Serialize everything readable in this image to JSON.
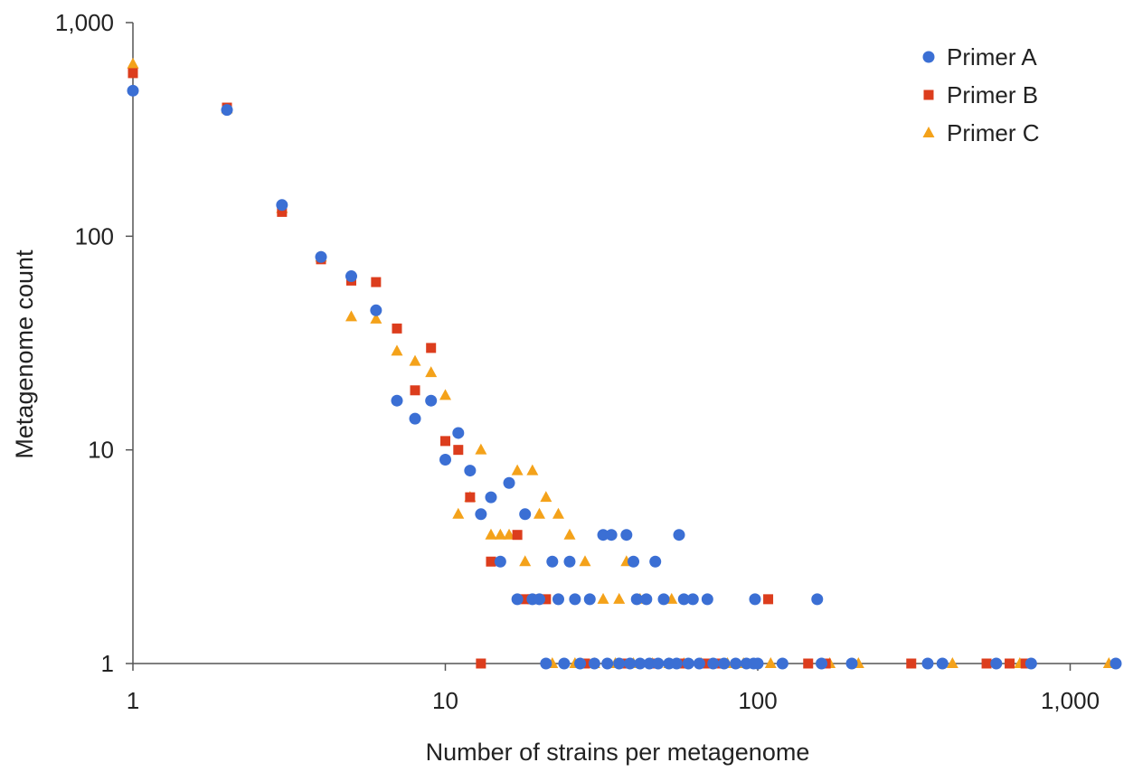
{
  "chart_data": {
    "type": "scatter",
    "title": "",
    "xlabel": "Number of strains per metagenome",
    "ylabel": "Metagenome count",
    "xscale": "log",
    "yscale": "log",
    "xlim": [
      1,
      1400
    ],
    "ylim": [
      1,
      1000
    ],
    "x_ticks": [
      1,
      10,
      100,
      1000
    ],
    "x_tick_labels": [
      "1",
      "10",
      "100",
      "1,000"
    ],
    "y_ticks": [
      1,
      10,
      100,
      1000
    ],
    "y_tick_labels": [
      "1",
      "10",
      "100",
      "1,000"
    ],
    "grid": false,
    "legend_position": "top-right",
    "series": [
      {
        "name": "Primer A",
        "marker": "circle",
        "color": "#3b6fd4",
        "points": [
          [
            1,
            480
          ],
          [
            2,
            390
          ],
          [
            3,
            140
          ],
          [
            4,
            80
          ],
          [
            5,
            65
          ],
          [
            6,
            45
          ],
          [
            7,
            17
          ],
          [
            8,
            14
          ],
          [
            9,
            17
          ],
          [
            10,
            9
          ],
          [
            11,
            12
          ],
          [
            12,
            8
          ],
          [
            13,
            5
          ],
          [
            14,
            6
          ],
          [
            15,
            3
          ],
          [
            16,
            7
          ],
          [
            17,
            2
          ],
          [
            18,
            5
          ],
          [
            19,
            2
          ],
          [
            20,
            2
          ],
          [
            22,
            3
          ],
          [
            23,
            2
          ],
          [
            25,
            3
          ],
          [
            26,
            2
          ],
          [
            29,
            2
          ],
          [
            32,
            4
          ],
          [
            34,
            4
          ],
          [
            38,
            4
          ],
          [
            40,
            3
          ],
          [
            41,
            2
          ],
          [
            44,
            2
          ],
          [
            47,
            3
          ],
          [
            50,
            2
          ],
          [
            56,
            4
          ],
          [
            58,
            2
          ],
          [
            62,
            2
          ],
          [
            69,
            2
          ],
          [
            98,
            2
          ],
          [
            155,
            2
          ],
          [
            21,
            1
          ],
          [
            24,
            1
          ],
          [
            27,
            1
          ],
          [
            30,
            1
          ],
          [
            33,
            1
          ],
          [
            36,
            1
          ],
          [
            39,
            1
          ],
          [
            42,
            1
          ],
          [
            45,
            1
          ],
          [
            48,
            1
          ],
          [
            52,
            1
          ],
          [
            55,
            1
          ],
          [
            60,
            1
          ],
          [
            65,
            1
          ],
          [
            72,
            1
          ],
          [
            78,
            1
          ],
          [
            85,
            1
          ],
          [
            92,
            1
          ],
          [
            97,
            1
          ],
          [
            100,
            1
          ],
          [
            120,
            1
          ],
          [
            160,
            1
          ],
          [
            200,
            1
          ],
          [
            350,
            1
          ],
          [
            390,
            1
          ],
          [
            580,
            1
          ],
          [
            750,
            1
          ],
          [
            1400,
            1
          ]
        ]
      },
      {
        "name": "Primer B",
        "marker": "square",
        "color": "#dc3d1d",
        "points": [
          [
            1,
            580
          ],
          [
            2,
            400
          ],
          [
            3,
            130
          ],
          [
            4,
            78
          ],
          [
            5,
            62
          ],
          [
            6,
            61
          ],
          [
            7,
            37
          ],
          [
            8,
            19
          ],
          [
            9,
            30
          ],
          [
            10,
            11
          ],
          [
            11,
            10
          ],
          [
            12,
            6
          ],
          [
            14,
            3
          ],
          [
            17,
            4
          ],
          [
            18,
            2
          ],
          [
            19,
            2
          ],
          [
            21,
            2
          ],
          [
            13,
            1
          ],
          [
            28,
            1
          ],
          [
            37,
            1
          ],
          [
            46,
            1
          ],
          [
            57,
            1
          ],
          [
            68,
            1
          ],
          [
            75,
            1
          ],
          [
            108,
            2
          ],
          [
            145,
            1
          ],
          [
            165,
            1
          ],
          [
            310,
            1
          ],
          [
            540,
            1
          ],
          [
            640,
            1
          ],
          [
            720,
            1
          ]
        ]
      },
      {
        "name": "Primer C",
        "marker": "triangle",
        "color": "#f4a21a",
        "points": [
          [
            1,
            640
          ],
          [
            2,
            395
          ],
          [
            3,
            135
          ],
          [
            4,
            80
          ],
          [
            5,
            42
          ],
          [
            6,
            41
          ],
          [
            7,
            29
          ],
          [
            8,
            26
          ],
          [
            9,
            23
          ],
          [
            10,
            18
          ],
          [
            11,
            5
          ],
          [
            12,
            6
          ],
          [
            13,
            10
          ],
          [
            14,
            4
          ],
          [
            15,
            4
          ],
          [
            16,
            4
          ],
          [
            17,
            8
          ],
          [
            18,
            3
          ],
          [
            19,
            8
          ],
          [
            20,
            5
          ],
          [
            21,
            6
          ],
          [
            23,
            5
          ],
          [
            25,
            4
          ],
          [
            28,
            3
          ],
          [
            32,
            2
          ],
          [
            36,
            2
          ],
          [
            38,
            3
          ],
          [
            42,
            2
          ],
          [
            53,
            2
          ],
          [
            22,
            1
          ],
          [
            26,
            1
          ],
          [
            30,
            1
          ],
          [
            35,
            1
          ],
          [
            40,
            1
          ],
          [
            46,
            1
          ],
          [
            52,
            1
          ],
          [
            58,
            1
          ],
          [
            66,
            1
          ],
          [
            80,
            1
          ],
          [
            90,
            1
          ],
          [
            110,
            1
          ],
          [
            170,
            1
          ],
          [
            210,
            1
          ],
          [
            420,
            1
          ],
          [
            690,
            1
          ],
          [
            1330,
            1
          ]
        ]
      }
    ]
  }
}
